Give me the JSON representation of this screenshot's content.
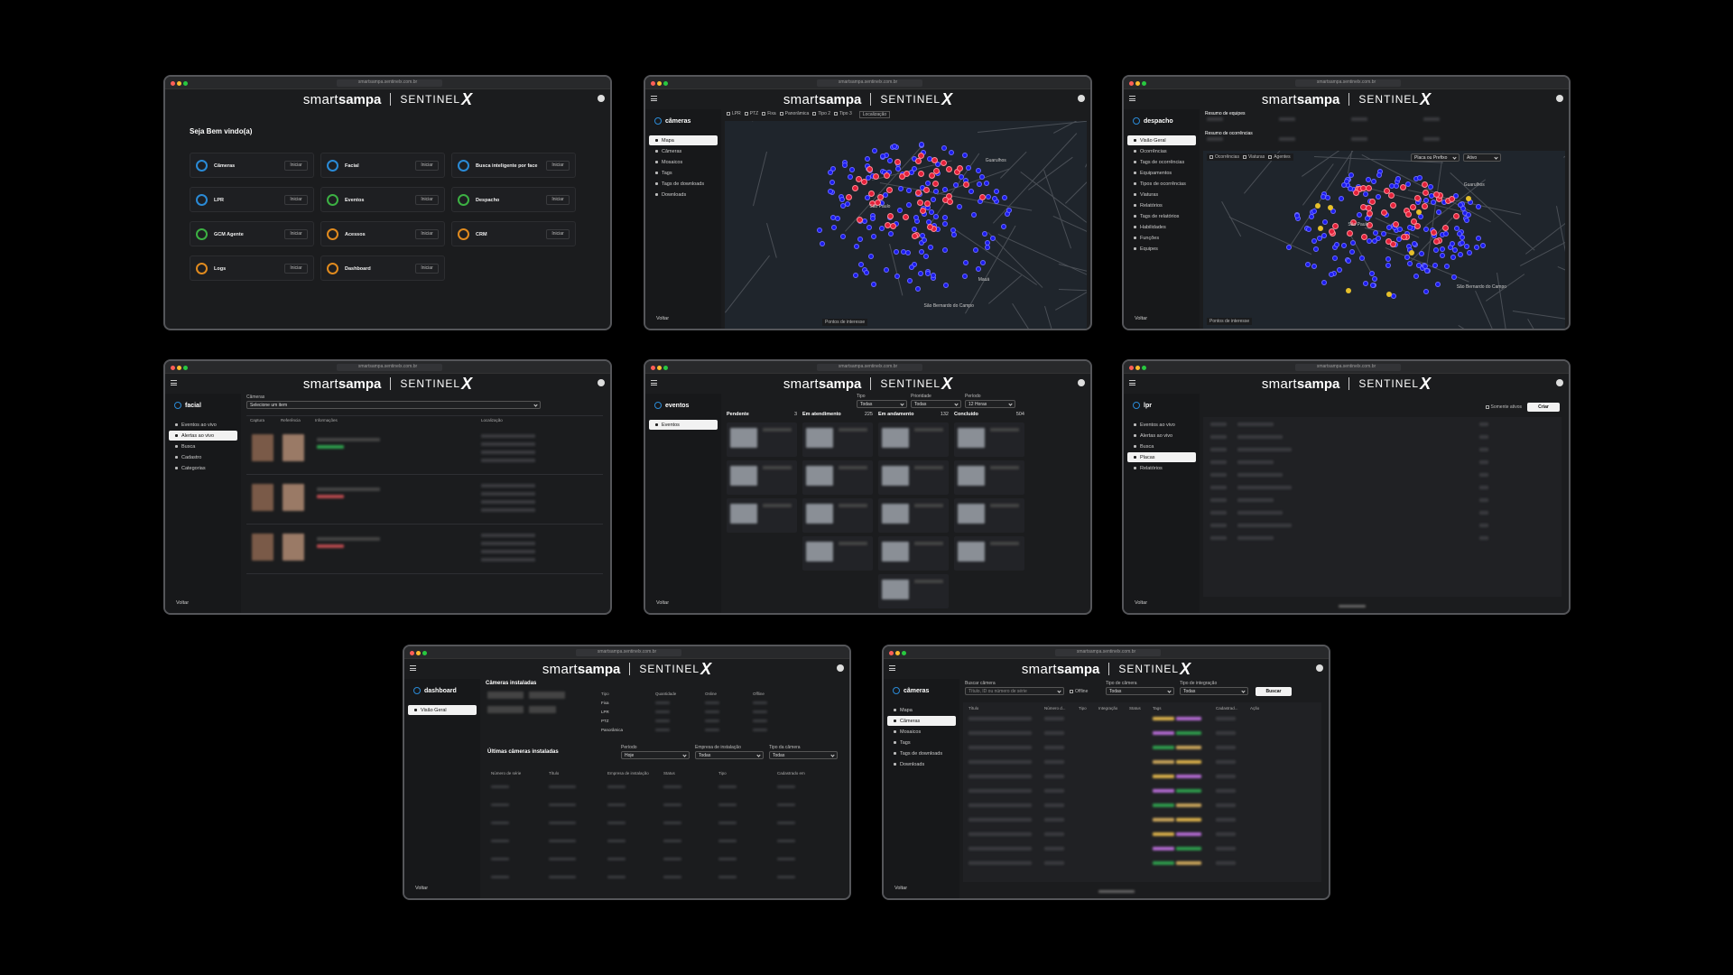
{
  "url": "smartsampa.sentinelx.com.br",
  "brand": {
    "smart": "smart",
    "sampa": "sampa",
    "sentinel": "SENTINEL",
    "x": "X"
  },
  "back": "Voltar",
  "windows": [
    {
      "kind": "home",
      "greeting": "Seja Bem vindo(a)",
      "button": "Iniciar",
      "tiles": [
        "Câmeras",
        "Facial",
        "Busca inteligente por face",
        "LPR",
        "Eventos",
        "Despacho",
        "GCM Agente",
        "Acessos",
        "CRM",
        "Logs",
        "Dashboard"
      ]
    },
    {
      "kind": "map",
      "module": "câmeras",
      "nav": [
        "Mapa",
        "Câmeras",
        "Mosaicos",
        "Tags",
        "Tags de downloads",
        "Downloads"
      ],
      "active": 0,
      "filters": [
        "LPR",
        "PTZ",
        "Fixa",
        "Panorâmica",
        "Tipo 2",
        "Tipo 3"
      ],
      "location": "Localização",
      "places": [
        "Guarulhos",
        "São Paulo",
        "Mauá",
        "São Bernardo do Campo"
      ],
      "footer": "Pontos de interesse"
    },
    {
      "kind": "dispatch",
      "module": "despacho",
      "nav": [
        "Visão Geral",
        "Ocorrências",
        "Tags de ocorrências",
        "Equipamentos",
        "Tipos de ocorrências",
        "Viaturas",
        "Relatórios",
        "Tags de relatórios",
        "Habilidades",
        "Funções",
        "Equipes"
      ],
      "active": 0,
      "summaries": [
        "Resumo de equipes",
        "Resumo de ocorrências"
      ],
      "layers": [
        "Ocorrências",
        "Viaturas",
        "Agentes"
      ],
      "search": "Placa ou Prefixo",
      "status": "Ativo",
      "places": [
        "Guarulhos",
        "São Paulo",
        "São Bernardo do Campo"
      ],
      "footer": "Pontos de interesse"
    },
    {
      "kind": "facial",
      "module": "facial",
      "nav": [
        "Eventos ao vivo",
        "Alertas ao vivo",
        "Busca",
        "Cadastro",
        "Categorias"
      ],
      "active": 1,
      "field": "Câmeras",
      "placeholder": "Selecione um item",
      "headers": [
        "Captura",
        "Referência",
        "Informações",
        "Localização"
      ]
    },
    {
      "kind": "events",
      "module": "eventos",
      "nav": [
        "Eventos"
      ],
      "active": 0,
      "filters": [
        {
          "label": "Tipo",
          "value": "Todas"
        },
        {
          "label": "Prioridade",
          "value": "Todas"
        },
        {
          "label": "Período",
          "value": "12 Horas"
        }
      ],
      "columns": [
        {
          "name": "Pendente",
          "count": 3
        },
        {
          "name": "Em atendimento",
          "count": 225
        },
        {
          "name": "Em andamento",
          "count": 132
        },
        {
          "name": "Concluído",
          "count": 504
        }
      ]
    },
    {
      "kind": "lpr",
      "module": "lpr",
      "nav": [
        "Eventos ao vivo",
        "Alertas ao vivo",
        "Busca",
        "Placas",
        "Relatórios"
      ],
      "active": 3,
      "toggle": "Somente ativos",
      "button": "Criar"
    },
    {
      "kind": "dashboard",
      "module": "dashboard",
      "nav": [
        "Visão Geral"
      ],
      "active": 0,
      "installed": "Câmeras instaladas",
      "stat_headers": [
        "Tipo",
        "Quantidade",
        "Online",
        "Offline"
      ],
      "stat_rows": [
        "Fixa",
        "LPR",
        "PTZ",
        "Panorâmica"
      ],
      "latest": "Últimas câmeras instaladas",
      "filters": [
        {
          "label": "Período",
          "value": "Hoje"
        },
        {
          "label": "Empresa de instalação",
          "value": "Todas"
        },
        {
          "label": "Tipo da câmera",
          "value": "Todas"
        }
      ],
      "headers": [
        "Número de série",
        "Título",
        "Empresa de instalação",
        "Status",
        "Tipo",
        "Cadastrado em"
      ]
    },
    {
      "kind": "cameras",
      "module": "câmeras",
      "nav": [
        "Mapa",
        "Câmeras",
        "Mosaicos",
        "Tags",
        "Tags de downloads",
        "Downloads"
      ],
      "active": 1,
      "search_label": "Buscar câmera",
      "placeholder": "Título, ID ou número de série",
      "offline": "Offline",
      "filters": [
        {
          "label": "Tipo de câmera",
          "value": "Todas"
        },
        {
          "label": "Tipo de integração",
          "value": "Todas"
        }
      ],
      "button": "Buscar",
      "headers": [
        "Título",
        "Número d...",
        "Tipo",
        "Integração",
        "Status",
        "Tags",
        "Cadastrad...",
        "Ação"
      ]
    }
  ]
}
